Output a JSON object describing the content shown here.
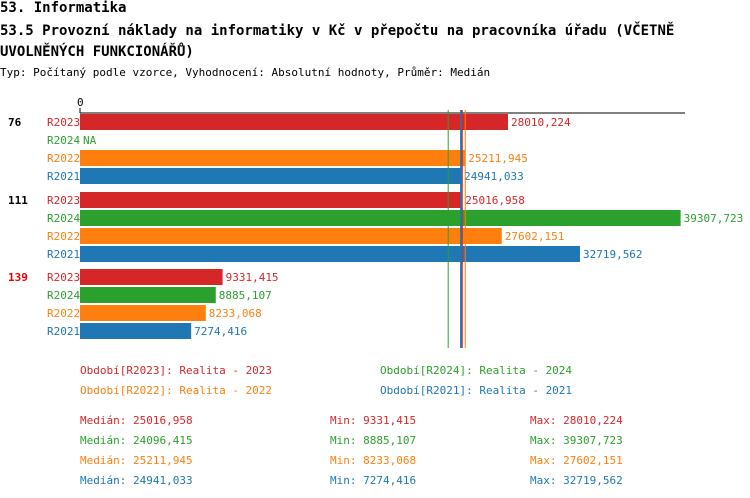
{
  "section_title": "53. Informatika",
  "chart_title": "53.5 Provozní náklady na informatiky v Kč v přepočtu na pracovníka úřadu (VČETNĚ UVOLNĚNÝCH FUNKCIONÁŘŮ)",
  "subtitle": "Typ: Počítaný podle vzorce, Vyhodnocení: Absolutní hodnoty, Průměr: Medián",
  "chart_data": {
    "type": "bar",
    "orientation": "horizontal",
    "x_tick_label": "0",
    "xlim": [
      0,
      43000
    ],
    "colors": {
      "R2023": "#d62728",
      "R2024": "#2ca02c",
      "R2022": "#ff7f0e",
      "R2021": "#1f77b4"
    },
    "groups": [
      {
        "label": "76",
        "highlight": false,
        "bars": [
          {
            "series": "R2023",
            "value": 28010.224,
            "label": "28010,224"
          },
          {
            "series": "R2024",
            "value": null,
            "label": "NA"
          },
          {
            "series": "R2022",
            "value": 25211.945,
            "label": "25211,945"
          },
          {
            "series": "R2021",
            "value": 24941.033,
            "label": "24941,033"
          }
        ]
      },
      {
        "label": "111",
        "highlight": false,
        "bars": [
          {
            "series": "R2023",
            "value": 25016.958,
            "label": "25016,958"
          },
          {
            "series": "R2024",
            "value": 39307.723,
            "label": "39307,723"
          },
          {
            "series": "R2022",
            "value": 27602.151,
            "label": "27602,151"
          },
          {
            "series": "R2021",
            "value": 32719.562,
            "label": "32719,562"
          }
        ]
      },
      {
        "label": "139",
        "highlight": true,
        "bars": [
          {
            "series": "R2023",
            "value": 9331.415,
            "label": "9331,415"
          },
          {
            "series": "R2024",
            "value": 8885.107,
            "label": "8885,107"
          },
          {
            "series": "R2022",
            "value": 8233.068,
            "label": "8233,068"
          },
          {
            "series": "R2021",
            "value": 7274.416,
            "label": "7274,416"
          }
        ]
      }
    ],
    "median_lines": [
      {
        "series": "R2024",
        "value": 24096.415
      },
      {
        "series": "R2021",
        "value": 24941.033
      },
      {
        "series": "R2023",
        "value": 25016.958
      },
      {
        "series": "R2022",
        "value": 25211.945
      }
    ],
    "legend": [
      {
        "series": "R2023",
        "text": "Období[R2023]: Realita - 2023"
      },
      {
        "series": "R2024",
        "text": "Období[R2024]: Realita - 2024"
      },
      {
        "series": "R2022",
        "text": "Období[R2022]: Realita - 2022"
      },
      {
        "series": "R2021",
        "text": "Období[R2021]: Realita - 2021"
      }
    ],
    "stats": [
      {
        "series": "R2023",
        "median": "Medián: 25016,958",
        "min": "Min: 9331,415",
        "max": "Max: 28010,224"
      },
      {
        "series": "R2024",
        "median": "Medián: 24096,415",
        "min": "Min: 8885,107",
        "max": "Max: 39307,723"
      },
      {
        "series": "R2022",
        "median": "Medián: 25211,945",
        "min": "Min: 8233,068",
        "max": "Max: 27602,151"
      },
      {
        "series": "R2021",
        "median": "Medián: 24941,033",
        "min": "Min: 7274,416",
        "max": "Max: 32719,562"
      }
    ]
  }
}
